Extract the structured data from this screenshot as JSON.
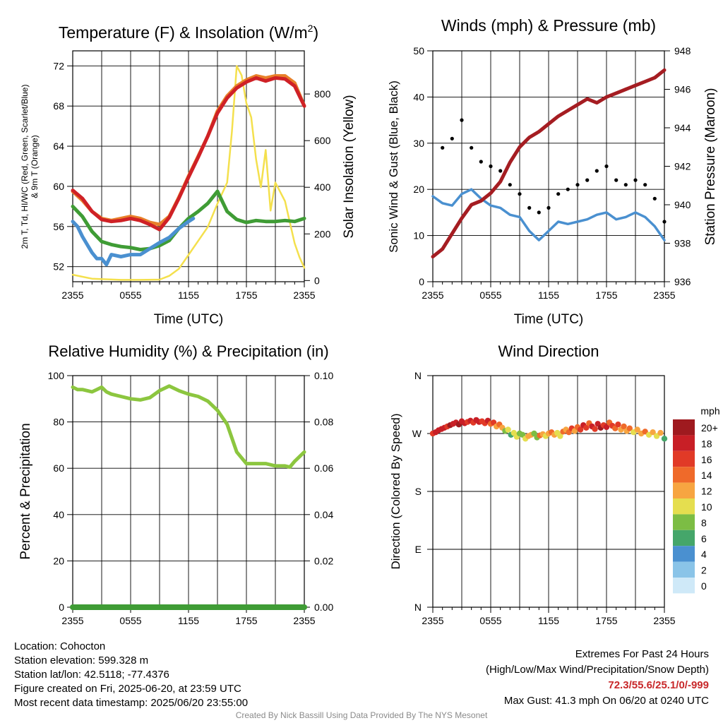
{
  "chart_data": [
    {
      "id": "temp",
      "type": "line",
      "title": "Temperature (F) & Insolation (W/m²)",
      "xlabel": "Time (UTC)",
      "ylabel_lines": [
        "2m T, Td, HI/WC (Red, Green, Scarlet/Blue)",
        "& 9m T (Orange)"
      ],
      "y2label": "Solar Insolation (Yellow)",
      "x_ticks": [
        "2355",
        "0555",
        "1155",
        "1755",
        "2355"
      ],
      "ylim": [
        50.5,
        73.5
      ],
      "y_ticks": [
        52,
        56,
        60,
        64,
        68,
        72
      ],
      "y2lim": [
        -5,
        985
      ],
      "y2_ticks": [
        0,
        200,
        400,
        600,
        800
      ],
      "series": [
        {
          "color": "#f4e04d",
          "axis": "right",
          "x": [
            0,
            2,
            5,
            7,
            9,
            10,
            11,
            12,
            13,
            14,
            15,
            16,
            16.5,
            17,
            17.5,
            18,
            18.5,
            19,
            19.5,
            20,
            20.5,
            21,
            22,
            22.5,
            23,
            23.5,
            24
          ],
          "y": [
            25,
            8,
            3,
            3,
            4,
            20,
            50,
            110,
            170,
            230,
            330,
            420,
            640,
            920,
            880,
            760,
            700,
            520,
            400,
            560,
            300,
            420,
            340,
            250,
            160,
            100,
            55
          ]
        },
        {
          "color": "#e8802a",
          "axis": "left",
          "x": [
            0,
            1,
            2,
            3,
            4,
            5,
            6,
            7,
            8,
            9,
            10,
            11,
            12,
            13,
            14,
            15,
            16,
            17,
            18,
            19,
            20,
            21,
            22,
            23,
            24
          ],
          "y": [
            59.5,
            58.6,
            57.5,
            56.8,
            56.6,
            56.8,
            57.0,
            56.8,
            56.4,
            56.2,
            57.0,
            58.9,
            61.0,
            63.0,
            65.0,
            67.5,
            69.0,
            70.0,
            70.6,
            71.0,
            70.8,
            71.0,
            71.0,
            70.3,
            68.0
          ]
        },
        {
          "color": "#cf2126",
          "axis": "left",
          "x": [
            0,
            1,
            2,
            3,
            4,
            5,
            6,
            7,
            8,
            9,
            10,
            11,
            12,
            13,
            14,
            15,
            16,
            17,
            18,
            19,
            20,
            21,
            22,
            23,
            24
          ],
          "y": [
            59.6,
            58.8,
            57.5,
            56.7,
            56.5,
            56.6,
            56.8,
            56.6,
            56.2,
            55.7,
            56.9,
            58.8,
            60.9,
            62.9,
            65.0,
            67.3,
            68.8,
            69.8,
            70.4,
            70.8,
            70.5,
            70.8,
            70.7,
            70.0,
            68.0
          ]
        },
        {
          "color": "#3f9c35",
          "axis": "left",
          "x": [
            0,
            1,
            2,
            3,
            4,
            5,
            6,
            7,
            8,
            9,
            10,
            11,
            12,
            13,
            14,
            15,
            16,
            17,
            18,
            19,
            20,
            21,
            22,
            23,
            24
          ],
          "y": [
            58.0,
            57.0,
            55.5,
            54.5,
            54.2,
            54.0,
            53.9,
            53.7,
            53.8,
            54.1,
            54.6,
            55.8,
            56.8,
            57.5,
            58.3,
            59.5,
            57.5,
            56.7,
            56.4,
            56.6,
            56.5,
            56.5,
            56.6,
            56.5,
            56.8
          ]
        },
        {
          "color": "#4a90d0",
          "axis": "left",
          "x": [
            0,
            0.5,
            1,
            2,
            2.5,
            3,
            3.5,
            4,
            5,
            6,
            7,
            8,
            9,
            10,
            11,
            12,
            12.5
          ],
          "y": [
            56.5,
            56.0,
            55.0,
            53.4,
            52.8,
            52.8,
            52.2,
            53.2,
            53.0,
            53.2,
            53.2,
            53.8,
            54.4,
            54.9,
            55.8,
            56.5,
            56.8
          ]
        }
      ]
    },
    {
      "id": "wind",
      "type": "line",
      "title": "Winds (mph) & Pressure (mb)",
      "xlabel": "Time (UTC)",
      "ylabel": "Sonic Wind & Gust (Blue, Black)",
      "y2label": "Station Pressure (Maroon)",
      "x_ticks": [
        "2355",
        "0555",
        "1155",
        "1755",
        "2355"
      ],
      "ylim": [
        0,
        50
      ],
      "y_ticks": [
        0,
        10,
        20,
        30,
        40,
        50
      ],
      "y2lim": [
        936,
        948
      ],
      "y2_ticks": [
        936,
        938,
        940,
        942,
        944,
        946,
        948
      ],
      "series": [
        {
          "name": "pressure",
          "color": "#a51d22",
          "axis": "right",
          "x": [
            0,
            1,
            2,
            3,
            4,
            5,
            6,
            7,
            8,
            9,
            10,
            11,
            12,
            13,
            14,
            15,
            16,
            17,
            18,
            19,
            20,
            21,
            22,
            23,
            24
          ],
          "y": [
            937.3,
            937.7,
            938.5,
            939.3,
            940.0,
            940.2,
            940.6,
            941.2,
            942.2,
            943.0,
            943.5,
            943.8,
            944.2,
            944.6,
            944.9,
            945.2,
            945.5,
            945.3,
            945.6,
            945.8,
            946.0,
            946.2,
            946.4,
            946.6,
            947.0
          ]
        },
        {
          "name": "wind",
          "color": "#4a90d0",
          "axis": "left",
          "x": [
            0,
            1,
            2,
            3,
            4,
            5,
            6,
            7,
            8,
            9,
            10,
            11,
            12,
            13,
            14,
            15,
            16,
            17,
            18,
            19,
            20,
            21,
            22,
            23,
            24
          ],
          "y": [
            18.5,
            17.0,
            16.5,
            19.0,
            20.0,
            18.0,
            16.5,
            16.0,
            14.5,
            14.0,
            11.0,
            9.0,
            11.0,
            13.0,
            12.5,
            13.0,
            13.5,
            14.5,
            15.0,
            13.5,
            14.0,
            15.0,
            14.0,
            12.0,
            9.0
          ]
        },
        {
          "name": "gust",
          "color": "#000000",
          "axis": "left",
          "x": [
            0,
            1,
            2,
            3,
            4,
            5,
            6,
            7,
            8,
            9,
            10,
            11,
            12,
            13,
            14,
            15,
            16,
            17,
            18,
            19,
            20,
            21,
            22,
            23,
            24
          ],
          "y": [
            27.0,
            29.0,
            31.0,
            35.0,
            29.0,
            26.0,
            25.0,
            24.0,
            21.0,
            19.0,
            16.0,
            15.0,
            16.0,
            19.0,
            20.0,
            21.0,
            22.0,
            24.0,
            25.0,
            22.0,
            21.0,
            22.0,
            21.0,
            18.0,
            13.0
          ]
        }
      ]
    },
    {
      "id": "rh",
      "type": "line",
      "title": "Relative Humidity (%) & Precipitation (in)",
      "ylabel": "Percent & Precipitation",
      "x_ticks": [
        "2355",
        "0555",
        "1155",
        "1755",
        "2355"
      ],
      "ylim": [
        0,
        100
      ],
      "y_ticks": [
        0,
        20,
        40,
        60,
        80,
        100
      ],
      "y2lim": [
        0,
        0.1
      ],
      "y2_ticks": [
        "0.00",
        "0.02",
        "0.04",
        "0.06",
        "0.08",
        "0.10"
      ],
      "series": [
        {
          "name": "rh",
          "color": "#8cc63f",
          "axis": "left",
          "x": [
            0,
            0.5,
            1,
            2,
            2.5,
            3,
            3.5,
            4,
            5,
            6,
            7,
            8,
            9,
            10,
            11,
            12,
            13,
            14,
            15,
            16,
            17,
            18,
            19,
            20,
            21,
            22,
            22.5,
            23,
            24
          ],
          "y": [
            95,
            94,
            94,
            93,
            94,
            95,
            93,
            92,
            91,
            90,
            89.5,
            90.5,
            93.5,
            95.5,
            93.5,
            92,
            91,
            89,
            85,
            79,
            67,
            62,
            62,
            62,
            61,
            61,
            60.5,
            63,
            67
          ]
        },
        {
          "name": "precip",
          "color": "#3f9c35",
          "axis": "right",
          "x": [
            0,
            24
          ],
          "y": [
            0,
            0
          ]
        }
      ]
    },
    {
      "id": "dir",
      "type": "scatter",
      "title": "Wind Direction",
      "ylabel": "Direction (Colored By Speed)",
      "x_ticks": [
        "2355",
        "0555",
        "1155",
        "1755",
        "2355"
      ],
      "y_ticks": [
        "N",
        "E",
        "S",
        "W",
        "N"
      ],
      "ylim": [
        0,
        360
      ],
      "legend_title": "mph",
      "legend_labels": [
        "0",
        "2",
        "4",
        "6",
        "8",
        "10",
        "12",
        "14",
        "16",
        "18",
        "20+"
      ],
      "legend_colors": [
        "#cfe9f8",
        "#8ac4e8",
        "#4a90d0",
        "#45a66a",
        "#7cbd44",
        "#e5de4f",
        "#f7a541",
        "#ef6a2a",
        "#e13a27",
        "#c81f26",
        "#9f1a1f"
      ],
      "points": {
        "x": [
          0,
          0.3,
          0.6,
          0.9,
          1.2,
          1.5,
          1.8,
          2.1,
          2.4,
          2.7,
          3.0,
          3.3,
          3.6,
          3.9,
          4.2,
          4.5,
          4.8,
          5.1,
          5.4,
          5.7,
          6.0,
          6.3,
          6.6,
          6.9,
          7.2,
          7.5,
          7.8,
          8.1,
          8.4,
          8.7,
          9.0,
          9.3,
          9.6,
          9.9,
          10.2,
          10.5,
          10.8,
          11.1,
          11.4,
          11.7,
          12.0,
          12.3,
          12.6,
          12.9,
          13.2,
          13.5,
          13.8,
          14.1,
          14.4,
          14.7,
          15.0,
          15.3,
          15.6,
          15.9,
          16.2,
          16.5,
          16.8,
          17.1,
          17.4,
          17.7,
          18.0,
          18.3,
          18.6,
          18.9,
          19.2,
          19.5,
          19.8,
          20.1,
          20.4,
          20.8,
          21.2,
          21.6,
          22.0,
          22.4,
          22.8,
          23.2,
          23.6,
          24.0
        ],
        "y": [
          270,
          272,
          275,
          277,
          279,
          281,
          283,
          285,
          287,
          284,
          289,
          286,
          288,
          290,
          287,
          291,
          288,
          289,
          286,
          290,
          285,
          287,
          281,
          284,
          279,
          274,
          276,
          268,
          271,
          265,
          270,
          268,
          262,
          266,
          268,
          270,
          264,
          267,
          269,
          266,
          270,
          272,
          268,
          271,
          266,
          273,
          276,
          272,
          278,
          274,
          280,
          276,
          283,
          279,
          286,
          281,
          277,
          285,
          279,
          283,
          280,
          287,
          282,
          278,
          284,
          276,
          281,
          274,
          278,
          272,
          276,
          270,
          273,
          268,
          272,
          266,
          271,
          262
        ],
        "speed": [
          17,
          18,
          19,
          18,
          19,
          17,
          20,
          19,
          18,
          20,
          18,
          19,
          17,
          18,
          16,
          19,
          18,
          17,
          16,
          18,
          14,
          16,
          13,
          14,
          12,
          9,
          10,
          6,
          10,
          11,
          8,
          9,
          10,
          13,
          12,
          8,
          9,
          14,
          13,
          11,
          12,
          14,
          13,
          11,
          10,
          15,
          12,
          14,
          16,
          13,
          15,
          17,
          18,
          16,
          14,
          19,
          17,
          18,
          20,
          16,
          19,
          15,
          17,
          14,
          16,
          13,
          15,
          12,
          14,
          11,
          13,
          12,
          14,
          11,
          13,
          10,
          12,
          7
        ]
      }
    }
  ],
  "footer": {
    "location": "Location: Cohocton",
    "elevation": "Station elevation: 599.328 m",
    "latlon": "Station lat/lon: 42.5118; -77.4376",
    "created": "Figure created on Fri, 2025-06-20, at 23:59 UTC",
    "recent": "Most recent data timestamp: 2025/06/20 23:55:00",
    "extremes_title": "Extremes For Past 24 Hours",
    "extremes_sub": "(High/Low/Max Wind/Precipitation/Snow Depth)",
    "extremes_values": "72.3/55.6/25.1/0/-999",
    "max_gust": "Max Gust: 41.3 mph On 06/20 at 0240 UTC",
    "credit": "Created By Nick Bassill Using Data Provided By The NYS Mesonet"
  },
  "colors": {
    "gust_dots": "#000000",
    "grid": "#000000",
    "credit_text": "#8a8a8a",
    "extremes_text": "#c8282a"
  }
}
